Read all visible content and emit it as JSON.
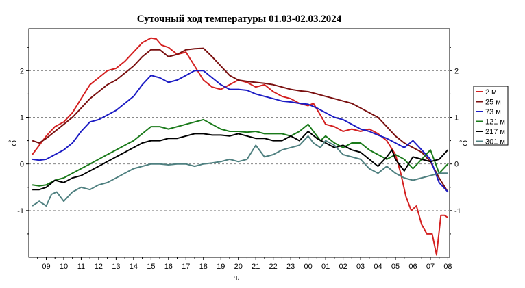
{
  "chart_data": {
    "type": "line",
    "title": "Суточный ход температуры 01.03-02.03.2024",
    "xlabel": "ч.",
    "ylabel": "°C",
    "ylabel_right": "°C",
    "x_ticks": [
      "09",
      "10",
      "11",
      "12",
      "13",
      "14",
      "15",
      "16",
      "17",
      "18",
      "19",
      "20",
      "21",
      "22",
      "23",
      "00",
      "01",
      "02",
      "03",
      "04",
      "05",
      "06",
      "07",
      "08"
    ],
    "xlim": [
      8,
      32.1
    ],
    "ylim": [
      -2,
      2.9
    ],
    "y_ticks": [
      -1,
      0,
      1,
      2
    ],
    "grid": "horizontal dashed",
    "legend_position": "right",
    "series": [
      {
        "name": "2 м",
        "color": "#d42020",
        "points": [
          [
            8.2,
            0.2
          ],
          [
            8.6,
            0.4
          ],
          [
            9,
            0.6
          ],
          [
            9.5,
            0.8
          ],
          [
            10,
            0.9
          ],
          [
            10.5,
            1.1
          ],
          [
            11,
            1.4
          ],
          [
            11.5,
            1.7
          ],
          [
            12,
            1.85
          ],
          [
            12.5,
            2.0
          ],
          [
            13,
            2.05
          ],
          [
            13.5,
            2.2
          ],
          [
            14,
            2.4
          ],
          [
            14.5,
            2.6
          ],
          [
            15,
            2.7
          ],
          [
            15.3,
            2.68
          ],
          [
            15.6,
            2.55
          ],
          [
            16,
            2.5
          ],
          [
            16.5,
            2.35
          ],
          [
            17,
            2.4
          ],
          [
            17.5,
            2.1
          ],
          [
            18,
            1.8
          ],
          [
            18.5,
            1.65
          ],
          [
            19,
            1.6
          ],
          [
            19.5,
            1.7
          ],
          [
            20,
            1.8
          ],
          [
            20.5,
            1.75
          ],
          [
            21,
            1.65
          ],
          [
            21.5,
            1.7
          ],
          [
            22,
            1.55
          ],
          [
            22.5,
            1.45
          ],
          [
            23,
            1.4
          ],
          [
            23.5,
            1.3
          ],
          [
            24,
            1.25
          ],
          [
            24.3,
            1.3
          ],
          [
            24.7,
            1.05
          ],
          [
            25,
            0.85
          ],
          [
            25.5,
            0.8
          ],
          [
            26,
            0.7
          ],
          [
            26.5,
            0.75
          ],
          [
            27,
            0.7
          ],
          [
            27.5,
            0.75
          ],
          [
            28,
            0.65
          ],
          [
            28.5,
            0.5
          ],
          [
            29,
            0.2
          ],
          [
            29.3,
            -0.2
          ],
          [
            29.6,
            -0.7
          ],
          [
            29.9,
            -1.0
          ],
          [
            30.2,
            -0.9
          ],
          [
            30.5,
            -1.3
          ],
          [
            30.8,
            -1.5
          ],
          [
            31.1,
            -1.5
          ],
          [
            31.35,
            -1.95
          ],
          [
            31.6,
            -1.1
          ],
          [
            31.8,
            -1.1
          ],
          [
            32,
            -1.15
          ]
        ]
      },
      {
        "name": "25 м",
        "color": "#7a1010",
        "points": [
          [
            8.2,
            0.5
          ],
          [
            8.6,
            0.45
          ],
          [
            9,
            0.55
          ],
          [
            9.5,
            0.7
          ],
          [
            10,
            0.85
          ],
          [
            10.5,
            1.0
          ],
          [
            11,
            1.2
          ],
          [
            11.5,
            1.4
          ],
          [
            12,
            1.55
          ],
          [
            12.5,
            1.7
          ],
          [
            13,
            1.8
          ],
          [
            13.5,
            1.95
          ],
          [
            14,
            2.1
          ],
          [
            14.5,
            2.3
          ],
          [
            15,
            2.45
          ],
          [
            15.5,
            2.45
          ],
          [
            16,
            2.3
          ],
          [
            16.5,
            2.35
          ],
          [
            17,
            2.45
          ],
          [
            17.5,
            2.47
          ],
          [
            18,
            2.48
          ],
          [
            18.5,
            2.3
          ],
          [
            19,
            2.1
          ],
          [
            19.5,
            1.9
          ],
          [
            20,
            1.8
          ],
          [
            20.5,
            1.77
          ],
          [
            21,
            1.75
          ],
          [
            21.5,
            1.73
          ],
          [
            22,
            1.7
          ],
          [
            22.5,
            1.65
          ],
          [
            23,
            1.6
          ],
          [
            23.5,
            1.57
          ],
          [
            24,
            1.55
          ],
          [
            24.5,
            1.5
          ],
          [
            25,
            1.45
          ],
          [
            25.5,
            1.4
          ],
          [
            26,
            1.35
          ],
          [
            26.5,
            1.3
          ],
          [
            27,
            1.2
          ],
          [
            27.5,
            1.1
          ],
          [
            28,
            1.0
          ],
          [
            28.5,
            0.8
          ],
          [
            29,
            0.6
          ],
          [
            29.5,
            0.45
          ],
          [
            30,
            0.35
          ],
          [
            30.5,
            0.25
          ],
          [
            31,
            0.05
          ],
          [
            31.5,
            -0.3
          ],
          [
            32,
            -0.6
          ]
        ]
      },
      {
        "name": "73 м",
        "color": "#1c1cc4",
        "points": [
          [
            8.2,
            0.1
          ],
          [
            8.6,
            0.08
          ],
          [
            9,
            0.1
          ],
          [
            9.5,
            0.2
          ],
          [
            10,
            0.3
          ],
          [
            10.5,
            0.45
          ],
          [
            11,
            0.7
          ],
          [
            11.5,
            0.9
          ],
          [
            12,
            0.95
          ],
          [
            12.5,
            1.05
          ],
          [
            13,
            1.15
          ],
          [
            13.5,
            1.3
          ],
          [
            14,
            1.45
          ],
          [
            14.5,
            1.7
          ],
          [
            15,
            1.9
          ],
          [
            15.5,
            1.85
          ],
          [
            16,
            1.75
          ],
          [
            16.5,
            1.8
          ],
          [
            17,
            1.9
          ],
          [
            17.5,
            2.0
          ],
          [
            18,
            2.0
          ],
          [
            18.5,
            1.85
          ],
          [
            19,
            1.7
          ],
          [
            19.5,
            1.6
          ],
          [
            20,
            1.6
          ],
          [
            20.5,
            1.58
          ],
          [
            21,
            1.5
          ],
          [
            21.5,
            1.45
          ],
          [
            22,
            1.4
          ],
          [
            22.5,
            1.35
          ],
          [
            23,
            1.33
          ],
          [
            23.5,
            1.3
          ],
          [
            24,
            1.28
          ],
          [
            24.5,
            1.2
          ],
          [
            25,
            1.1
          ],
          [
            25.5,
            1.0
          ],
          [
            26,
            0.95
          ],
          [
            26.5,
            0.85
          ],
          [
            27,
            0.75
          ],
          [
            27.5,
            0.7
          ],
          [
            28,
            0.62
          ],
          [
            28.5,
            0.55
          ],
          [
            29,
            0.45
          ],
          [
            29.5,
            0.35
          ],
          [
            30,
            0.5
          ],
          [
            30.5,
            0.3
          ],
          [
            31,
            0.1
          ],
          [
            31.5,
            -0.4
          ],
          [
            32,
            -0.6
          ]
        ]
      },
      {
        "name": "121 м",
        "color": "#1a7a1a",
        "points": [
          [
            8.2,
            -0.45
          ],
          [
            8.6,
            -0.47
          ],
          [
            9,
            -0.45
          ],
          [
            9.5,
            -0.35
          ],
          [
            10,
            -0.3
          ],
          [
            10.5,
            -0.2
          ],
          [
            11,
            -0.1
          ],
          [
            11.5,
            0.0
          ],
          [
            12,
            0.1
          ],
          [
            12.5,
            0.2
          ],
          [
            13,
            0.3
          ],
          [
            13.5,
            0.4
          ],
          [
            14,
            0.5
          ],
          [
            14.5,
            0.65
          ],
          [
            15,
            0.8
          ],
          [
            15.5,
            0.8
          ],
          [
            16,
            0.75
          ],
          [
            16.5,
            0.8
          ],
          [
            17,
            0.85
          ],
          [
            17.5,
            0.9
          ],
          [
            18,
            0.95
          ],
          [
            18.5,
            0.85
          ],
          [
            19,
            0.75
          ],
          [
            19.5,
            0.7
          ],
          [
            20,
            0.7
          ],
          [
            20.5,
            0.68
          ],
          [
            21,
            0.7
          ],
          [
            21.5,
            0.65
          ],
          [
            22,
            0.65
          ],
          [
            22.5,
            0.65
          ],
          [
            23,
            0.6
          ],
          [
            23.5,
            0.7
          ],
          [
            24,
            0.85
          ],
          [
            24.3,
            0.7
          ],
          [
            24.7,
            0.5
          ],
          [
            25,
            0.6
          ],
          [
            25.5,
            0.45
          ],
          [
            26,
            0.35
          ],
          [
            26.5,
            0.45
          ],
          [
            27,
            0.45
          ],
          [
            27.5,
            0.3
          ],
          [
            28,
            0.2
          ],
          [
            28.5,
            0.1
          ],
          [
            29,
            0.2
          ],
          [
            29.5,
            0.1
          ],
          [
            30,
            -0.1
          ],
          [
            30.5,
            0.1
          ],
          [
            31,
            0.3
          ],
          [
            31.5,
            -0.2
          ],
          [
            32,
            0.0
          ]
        ]
      },
      {
        "name": "217 м",
        "color": "#000000",
        "points": [
          [
            8.2,
            -0.55
          ],
          [
            8.6,
            -0.55
          ],
          [
            9,
            -0.5
          ],
          [
            9.5,
            -0.35
          ],
          [
            10,
            -0.4
          ],
          [
            10.5,
            -0.3
          ],
          [
            11,
            -0.25
          ],
          [
            11.5,
            -0.15
          ],
          [
            12,
            -0.05
          ],
          [
            12.5,
            0.05
          ],
          [
            13,
            0.15
          ],
          [
            13.5,
            0.25
          ],
          [
            14,
            0.35
          ],
          [
            14.5,
            0.45
          ],
          [
            15,
            0.5
          ],
          [
            15.5,
            0.5
          ],
          [
            16,
            0.55
          ],
          [
            16.5,
            0.55
          ],
          [
            17,
            0.6
          ],
          [
            17.5,
            0.65
          ],
          [
            18,
            0.65
          ],
          [
            18.5,
            0.62
          ],
          [
            19,
            0.62
          ],
          [
            19.5,
            0.6
          ],
          [
            20,
            0.65
          ],
          [
            20.5,
            0.6
          ],
          [
            21,
            0.55
          ],
          [
            21.5,
            0.55
          ],
          [
            22,
            0.5
          ],
          [
            22.5,
            0.5
          ],
          [
            23,
            0.6
          ],
          [
            23.5,
            0.5
          ],
          [
            24,
            0.7
          ],
          [
            24.5,
            0.55
          ],
          [
            25,
            0.45
          ],
          [
            25.5,
            0.35
          ],
          [
            26,
            0.4
          ],
          [
            26.5,
            0.3
          ],
          [
            27,
            0.25
          ],
          [
            27.5,
            0.1
          ],
          [
            28,
            -0.05
          ],
          [
            28.5,
            0.15
          ],
          [
            28.8,
            0.3
          ],
          [
            29,
            0.1
          ],
          [
            29.5,
            -0.15
          ],
          [
            30,
            0.15
          ],
          [
            30.5,
            0.1
          ],
          [
            31,
            0.05
          ],
          [
            31.5,
            0.1
          ],
          [
            32,
            0.3
          ]
        ]
      },
      {
        "name": "301 м",
        "color": "#4f8080",
        "points": [
          [
            8.2,
            -0.9
          ],
          [
            8.6,
            -0.8
          ],
          [
            9,
            -0.9
          ],
          [
            9.3,
            -0.65
          ],
          [
            9.6,
            -0.6
          ],
          [
            10,
            -0.8
          ],
          [
            10.5,
            -0.6
          ],
          [
            11,
            -0.5
          ],
          [
            11.5,
            -0.55
          ],
          [
            12,
            -0.45
          ],
          [
            12.5,
            -0.4
          ],
          [
            13,
            -0.3
          ],
          [
            13.5,
            -0.2
          ],
          [
            14,
            -0.1
          ],
          [
            14.5,
            -0.05
          ],
          [
            15,
            0.0
          ],
          [
            15.5,
            0.0
          ],
          [
            16,
            -0.02
          ],
          [
            16.5,
            0.0
          ],
          [
            17,
            0.0
          ],
          [
            17.5,
            -0.05
          ],
          [
            18,
            0.0
          ],
          [
            18.5,
            0.02
          ],
          [
            19,
            0.05
          ],
          [
            19.5,
            0.1
          ],
          [
            20,
            0.05
          ],
          [
            20.5,
            0.1
          ],
          [
            21,
            0.4
          ],
          [
            21.5,
            0.15
          ],
          [
            22,
            0.2
          ],
          [
            22.5,
            0.3
          ],
          [
            23,
            0.35
          ],
          [
            23.5,
            0.4
          ],
          [
            24,
            0.6
          ],
          [
            24.3,
            0.45
          ],
          [
            24.7,
            0.35
          ],
          [
            25,
            0.5
          ],
          [
            25.5,
            0.4
          ],
          [
            26,
            0.2
          ],
          [
            26.5,
            0.15
          ],
          [
            27,
            0.1
          ],
          [
            27.5,
            -0.1
          ],
          [
            28,
            -0.2
          ],
          [
            28.5,
            -0.05
          ],
          [
            29,
            -0.2
          ],
          [
            29.5,
            -0.3
          ],
          [
            30,
            -0.35
          ],
          [
            30.5,
            -0.3
          ],
          [
            31,
            -0.25
          ],
          [
            31.5,
            -0.2
          ],
          [
            32,
            -0.2
          ]
        ]
      }
    ]
  }
}
